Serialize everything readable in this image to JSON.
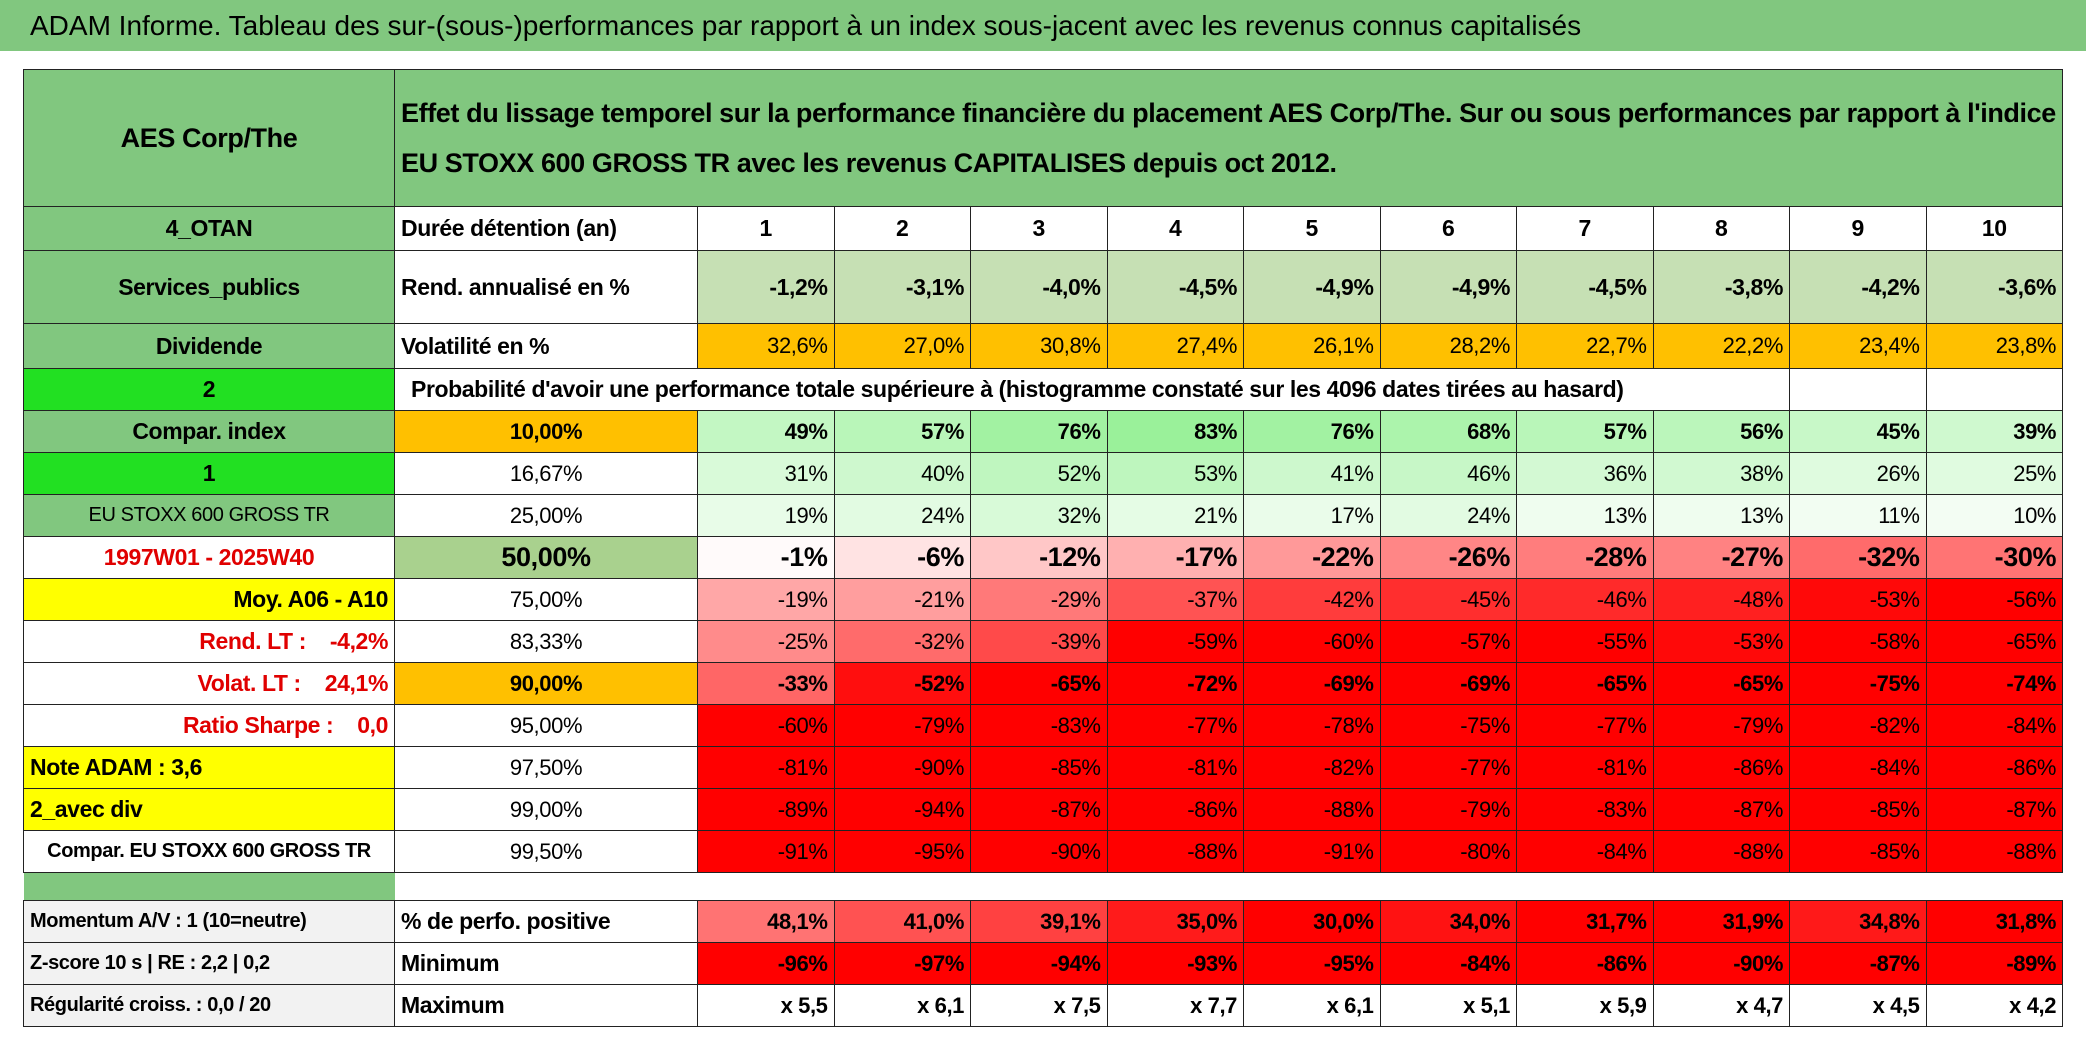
{
  "title": "ADAM Informe. Tableau des sur-(sous-)performances par rapport à un index sous-jacent avec les revenus connus capitalisés",
  "header": {
    "name": "AES Corp/The",
    "description": "Effet du lissage temporel sur la performance financière du placement AES Corp/The. Sur ou sous performances par rapport à l'indice EU STOXX 600 GROSS TR avec les revenus CAPITALISES depuis oct 2012."
  },
  "rows": [
    {
      "label": "4_OTAN",
      "cells": [
        "Durée détention (an)",
        "1",
        "2",
        "3",
        "4",
        "5",
        "6",
        "7",
        "8",
        "9",
        "10"
      ]
    },
    {
      "label": "Services_publics",
      "cells": [
        "Rend. annualisé en %",
        "-1,2%",
        "-3,1%",
        "-4,0%",
        "-4,5%",
        "-4,9%",
        "-4,9%",
        "-4,5%",
        "-3,8%",
        "-4,2%",
        "-3,6%"
      ]
    },
    {
      "label": "Dividende",
      "cells": [
        "Volatilité en %",
        "32,6%",
        "27,0%",
        "30,8%",
        "27,4%",
        "26,1%",
        "28,2%",
        "22,7%",
        "22,2%",
        "23,4%",
        "23,8%"
      ]
    },
    {
      "label": "2",
      "cells": [
        "Probabilité d'avoir une performance totale supérieure à (histogramme constaté sur les 4096 dates tirées au hasard)"
      ]
    },
    {
      "label": "Compar. index",
      "cells": [
        "10,00%",
        "49%",
        "57%",
        "76%",
        "83%",
        "76%",
        "68%",
        "57%",
        "56%",
        "45%",
        "39%"
      ]
    },
    {
      "label": "1",
      "cells": [
        "16,67%",
        "31%",
        "40%",
        "52%",
        "53%",
        "41%",
        "46%",
        "36%",
        "38%",
        "26%",
        "25%"
      ]
    },
    {
      "label": "EU STOXX 600 GROSS TR",
      "cells": [
        "25,00%",
        "19%",
        "24%",
        "32%",
        "21%",
        "17%",
        "24%",
        "13%",
        "13%",
        "11%",
        "10%"
      ]
    },
    {
      "label": "1997W01 - 2025W40",
      "cells": [
        "50,00%",
        "-1%",
        "-6%",
        "-12%",
        "-17%",
        "-22%",
        "-26%",
        "-28%",
        "-27%",
        "-32%",
        "-30%"
      ]
    },
    {
      "label": "Moy. A06 - A10",
      "cells": [
        "75,00%",
        "-19%",
        "-21%",
        "-29%",
        "-37%",
        "-42%",
        "-45%",
        "-46%",
        "-48%",
        "-53%",
        "-56%"
      ]
    },
    {
      "label": "Rend. LT :    -4,2%",
      "cells": [
        "83,33%",
        "-25%",
        "-32%",
        "-39%",
        "-59%",
        "-60%",
        "-57%",
        "-55%",
        "-53%",
        "-58%",
        "-65%"
      ]
    },
    {
      "label": "Volat. LT :    24,1%",
      "cells": [
        "90,00%",
        "-33%",
        "-52%",
        "-65%",
        "-72%",
        "-69%",
        "-69%",
        "-65%",
        "-65%",
        "-75%",
        "-74%"
      ]
    },
    {
      "label": "Ratio Sharpe :    0,0",
      "cells": [
        "95,00%",
        "-60%",
        "-79%",
        "-83%",
        "-77%",
        "-78%",
        "-75%",
        "-77%",
        "-79%",
        "-82%",
        "-84%"
      ]
    },
    {
      "label": "Note ADAM : 3,6",
      "cells": [
        "97,50%",
        "-81%",
        "-90%",
        "-85%",
        "-81%",
        "-82%",
        "-77%",
        "-81%",
        "-86%",
        "-84%",
        "-86%"
      ]
    },
    {
      "label": "2_avec div",
      "cells": [
        "99,00%",
        "-89%",
        "-94%",
        "-87%",
        "-86%",
        "-88%",
        "-79%",
        "-83%",
        "-87%",
        "-85%",
        "-87%"
      ]
    },
    {
      "label": "Compar. EU STOXX 600 GROSS TR",
      "cells": [
        "99,50%",
        "-91%",
        "-95%",
        "-90%",
        "-88%",
        "-91%",
        "-80%",
        "-84%",
        "-88%",
        "-85%",
        "-88%"
      ]
    }
  ],
  "summary_rows": [
    {
      "label": "Momentum A/V : 1 (10=neutre)",
      "cells": [
        "% de perfo. positive",
        "48,1%",
        "41,0%",
        "39,1%",
        "35,0%",
        "30,0%",
        "34,0%",
        "31,7%",
        "31,9%",
        "34,8%",
        "31,8%"
      ]
    },
    {
      "label": "Z-score 10 s | RE : 2,2 | 0,2",
      "cells": [
        "Minimum",
        "-96%",
        "-97%",
        "-94%",
        "-93%",
        "-95%",
        "-84%",
        "-86%",
        "-90%",
        "-87%",
        "-89%"
      ]
    },
    {
      "label": "Régularité croiss. : 0,0 / 20",
      "cells": [
        "Maximum",
        "x 5,5",
        "x 6,1",
        "x 7,5",
        "x 7,7",
        "x 6,1",
        "x 5,1",
        "x 5,9",
        "x 4,7",
        "x 4,5",
        "x 4,2"
      ]
    }
  ]
}
